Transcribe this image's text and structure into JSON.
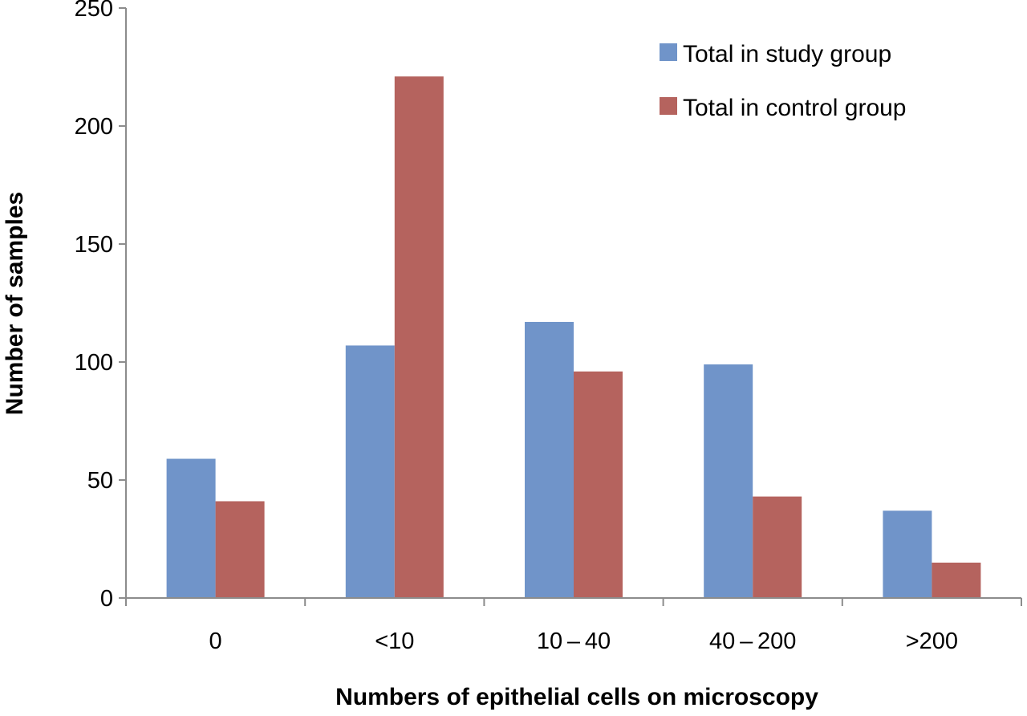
{
  "chart_data": {
    "type": "bar",
    "title": "",
    "xlabel": "Numbers of epithelial cells on microscopy",
    "ylabel": "Number of samples",
    "categories": [
      "0",
      "<10",
      "10 – 40",
      "40 – 200",
      ">200"
    ],
    "series": [
      {
        "name": "Total in study group",
        "color": "#7094c9",
        "values": [
          59,
          107,
          117,
          99,
          37
        ]
      },
      {
        "name": "Total in control group",
        "color": "#b5635e",
        "values": [
          41,
          221,
          96,
          43,
          15
        ]
      }
    ],
    "ylim": [
      0,
      250
    ],
    "yticks": [
      0,
      50,
      100,
      150,
      200,
      250
    ],
    "grid": false,
    "legend_position": "top-right"
  }
}
